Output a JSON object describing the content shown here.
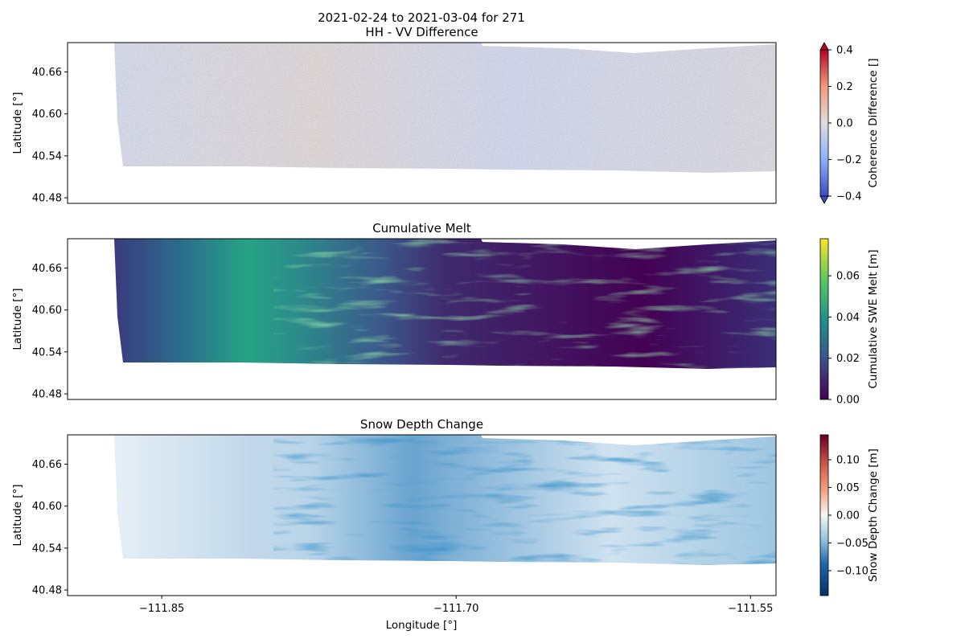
{
  "figure": {
    "title_line1": "2021-02-24 to 2021-03-04 for 271",
    "xlabel": "Longitude [°]"
  },
  "chart_data": [
    {
      "type": "heatmap",
      "title": "HH - VV Difference",
      "ylabel": "Latitude [°]",
      "xlim": [
        -111.898,
        -111.537
      ],
      "ylim": [
        40.472,
        40.702
      ],
      "yticks": [
        40.48,
        40.54,
        40.6,
        40.66
      ],
      "colormap": "coolwarm",
      "colorbar": {
        "label": "Coherence Difference []",
        "range": [
          -0.4,
          0.4
        ],
        "ticks": [
          -0.4,
          -0.2,
          0.0,
          0.2,
          0.4
        ],
        "extend": "both"
      }
    },
    {
      "type": "heatmap",
      "title": "Cumulative Melt",
      "ylabel": "Latitude [°]",
      "xlim": [
        -111.898,
        -111.537
      ],
      "ylim": [
        40.472,
        40.702
      ],
      "yticks": [
        40.48,
        40.54,
        40.6,
        40.66
      ],
      "colormap": "viridis",
      "colorbar": {
        "label": "Cumulative SWE Melt [m]",
        "range": [
          0.0,
          0.078
        ],
        "ticks": [
          0.0,
          0.02,
          0.04,
          0.06
        ],
        "extend": "neither"
      }
    },
    {
      "type": "heatmap",
      "title": "Snow Depth Change",
      "ylabel": "Latitude [°]",
      "xlim": [
        -111.898,
        -111.537
      ],
      "ylim": [
        40.472,
        40.702
      ],
      "yticks": [
        40.48,
        40.54,
        40.6,
        40.66
      ],
      "xticks": [
        -111.85,
        -111.7,
        -111.55
      ],
      "colormap": "RdBu_r",
      "colorbar": {
        "label": "Snow Depth Change [m]",
        "range": [
          -0.145,
          0.145
        ],
        "ticks": [
          -0.1,
          -0.05,
          0.0,
          0.05,
          0.1
        ],
        "extend": "neither"
      }
    }
  ]
}
